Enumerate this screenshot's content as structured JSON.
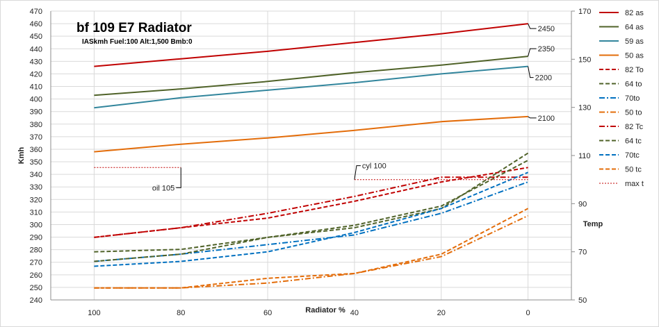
{
  "chart_data": {
    "type": "line",
    "title": "bf 109 E7 Radiator",
    "subtitle": "IASkmh Fuel:100 Alt:1,500 Bmb:0",
    "xlabel": "Radiator %",
    "ylabel": "Kmh",
    "y2label": "Temp",
    "x": [
      100,
      80,
      60,
      40,
      20,
      0
    ],
    "x_ticks": [
      "100",
      "80",
      "60",
      "40",
      "20",
      "0"
    ],
    "xlim": [
      110,
      -10
    ],
    "ylim": [
      240,
      470
    ],
    "y_ticks": [
      "240",
      "250",
      "260",
      "270",
      "280",
      "290",
      "300",
      "310",
      "320",
      "330",
      "340",
      "350",
      "360",
      "370",
      "380",
      "390",
      "400",
      "410",
      "420",
      "430",
      "440",
      "450",
      "460",
      "470"
    ],
    "y2lim": [
      50,
      170
    ],
    "y2_ticks": [
      "50",
      "70",
      "90",
      "110",
      "130",
      "150",
      "170"
    ],
    "grid": true,
    "legend_position": "right",
    "series": [
      {
        "name": "82 as",
        "axis": "left",
        "color": "#c00000",
        "dash": "solid",
        "values": [
          426,
          432,
          438,
          445,
          452,
          460
        ]
      },
      {
        "name": "64 as",
        "axis": "left",
        "color": "#4f6228",
        "dash": "solid",
        "values": [
          403,
          408,
          414,
          421,
          427,
          434
        ]
      },
      {
        "name": "59 as",
        "axis": "left",
        "color": "#31859c",
        "dash": "solid",
        "values": [
          393,
          401,
          407,
          413,
          420,
          426
        ]
      },
      {
        "name": "50 as",
        "axis": "left",
        "color": "#e36c09",
        "dash": "solid",
        "values": [
          358,
          364,
          369,
          375,
          382,
          386
        ]
      },
      {
        "name": "82 To",
        "axis": "right",
        "color": "#c00000",
        "dash": "dash",
        "values": [
          76,
          80,
          84,
          91,
          99,
          105
        ]
      },
      {
        "name": "64 to",
        "axis": "right",
        "color": "#4f6228",
        "dash": "dash",
        "values": [
          70,
          71,
          76,
          81,
          89,
          108
        ]
      },
      {
        "name": "70to",
        "axis": "right",
        "color": "#0070c0",
        "dash": "dashdot",
        "values": [
          66,
          69,
          73,
          77,
          86,
          99
        ]
      },
      {
        "name": "50 to",
        "axis": "right",
        "color": "#e36c09",
        "dash": "dashdot",
        "values": [
          55,
          55,
          57,
          61,
          68,
          85
        ]
      },
      {
        "name": "82 Tc",
        "axis": "right",
        "color": "#c00000",
        "dash": "dashdot",
        "values": [
          76,
          80,
          86,
          93,
          101,
          101
        ]
      },
      {
        "name": "64 tc",
        "axis": "right",
        "color": "#4f6228",
        "dash": "dash",
        "values": [
          66,
          69,
          76,
          80,
          88,
          111
        ]
      },
      {
        "name": "70tc",
        "axis": "right",
        "color": "#0070c0",
        "dash": "dash",
        "values": [
          64,
          66,
          70,
          78,
          88,
          103
        ]
      },
      {
        "name": "50 tc",
        "axis": "right",
        "color": "#e36c09",
        "dash": "dash",
        "values": [
          55,
          55,
          59,
          61,
          69,
          88
        ]
      },
      {
        "name": "max t",
        "axis": "right",
        "color": "#c00000",
        "dash": "dot",
        "segments": [
          [
            [
              100,
              105
            ],
            [
              80,
              105
            ]
          ],
          [
            [
              40,
              100
            ],
            [
              0,
              100
            ]
          ]
        ]
      }
    ],
    "annotations": [
      {
        "text": "2450",
        "x": 0,
        "y": 460
      },
      {
        "text": "2350",
        "x": 0,
        "y": 434
      },
      {
        "text": "2200",
        "x": 0,
        "y": 426
      },
      {
        "text": "2100",
        "x": 0,
        "y": 386
      },
      {
        "text": "oil 105",
        "x": 80,
        "y": 105,
        "axis": "right"
      },
      {
        "text": "cyl 100",
        "x": 40,
        "y": 100,
        "axis": "right"
      }
    ]
  }
}
